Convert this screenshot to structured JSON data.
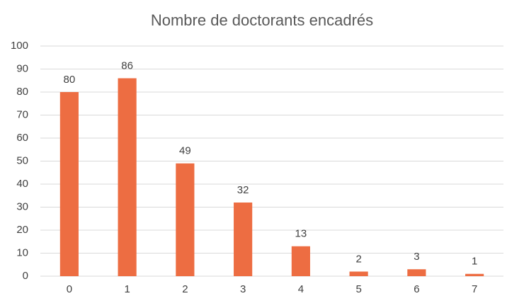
{
  "chart_data": {
    "type": "bar",
    "title": "Nombre de doctorants encadrés",
    "categories": [
      "0",
      "1",
      "2",
      "3",
      "4",
      "5",
      "6",
      "7"
    ],
    "values": [
      80,
      86,
      49,
      32,
      13,
      2,
      3,
      1
    ],
    "color": "#ed6d42",
    "ylim": [
      0,
      100
    ],
    "yticks": [
      0,
      10,
      20,
      30,
      40,
      50,
      60,
      70,
      80,
      90,
      100
    ],
    "grid": true
  }
}
